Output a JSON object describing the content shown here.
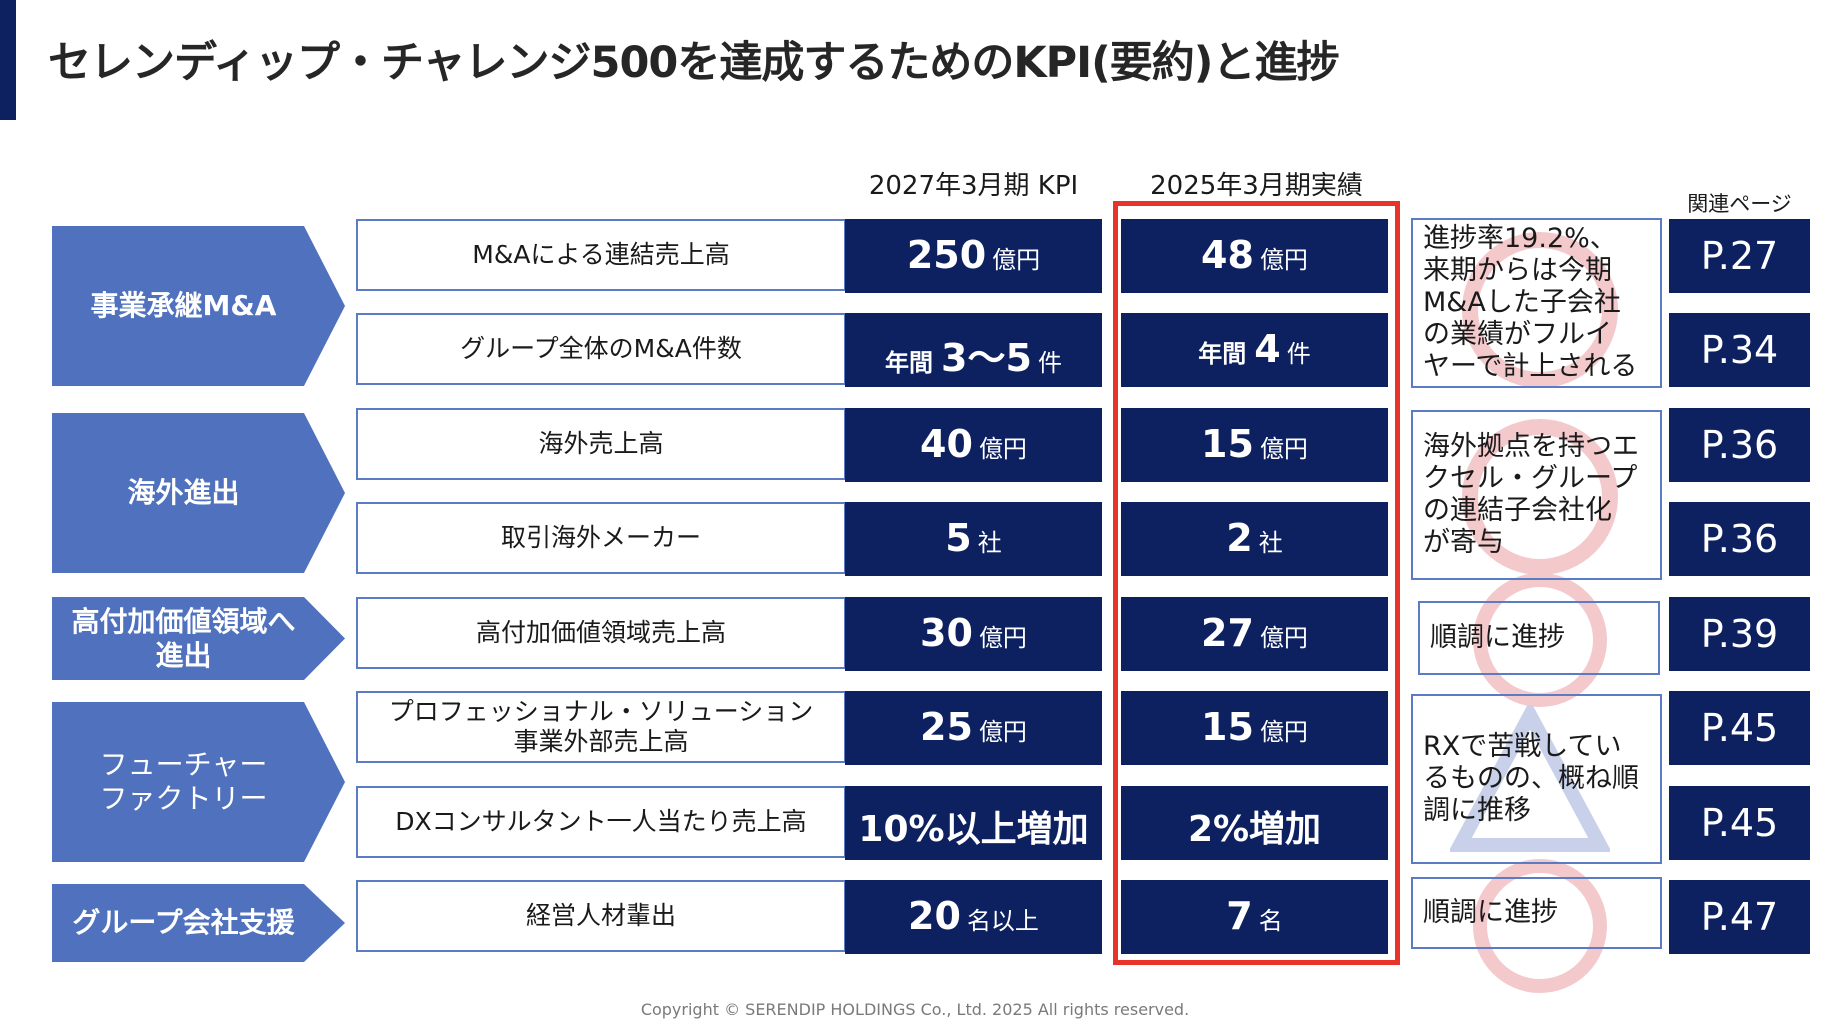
{
  "title": "セレンディップ・チャレンジ500を達成するためのKPI(要約)と進捗",
  "headers": {
    "kpi": "2027年3月期  KPI",
    "actual": "2025年3月期実績",
    "pages": "関連ページ"
  },
  "categories": [
    {
      "label": "事業承継M&A"
    },
    {
      "label": "海外進出"
    },
    {
      "label": "高付加価値領域へ\n進出"
    },
    {
      "label": "フューチャー\nファクトリー"
    },
    {
      "label": "グループ会社支援"
    }
  ],
  "rows": [
    {
      "name": "M&Aによる連結売上高",
      "kpi": {
        "prefix": "",
        "value": "250",
        "unit": "億円"
      },
      "actual": {
        "prefix": "",
        "value": "48",
        "unit": "億円"
      },
      "page": "P.27"
    },
    {
      "name": "グループ全体のM&A件数",
      "kpi": {
        "prefix": "年間",
        "value": "3〜5",
        "unit": "件"
      },
      "actual": {
        "prefix": "年間",
        "value": "4",
        "unit": "件"
      },
      "page": "P.34"
    },
    {
      "name": "海外売上高",
      "kpi": {
        "prefix": "",
        "value": "40",
        "unit": "億円"
      },
      "actual": {
        "prefix": "",
        "value": "15",
        "unit": "億円"
      },
      "page": "P.36"
    },
    {
      "name": "取引海外メーカー",
      "kpi": {
        "prefix": "",
        "value": "5",
        "unit": "社"
      },
      "actual": {
        "prefix": "",
        "value": "2",
        "unit": "社"
      },
      "page": "P.36"
    },
    {
      "name": "高付加価値領域売上高",
      "kpi": {
        "prefix": "",
        "value": "30",
        "unit": "億円"
      },
      "actual": {
        "prefix": "",
        "value": "27",
        "unit": "億円"
      },
      "page": "P.39"
    },
    {
      "name": "プロフェッショナル・ソリューション\n事業外部売上高",
      "kpi": {
        "prefix": "",
        "value": "25",
        "unit": "億円"
      },
      "actual": {
        "prefix": "",
        "value": "15",
        "unit": "億円"
      },
      "page": "P.45"
    },
    {
      "name": "DXコンサルタント一人当たり売上高",
      "kpi": {
        "prefix": "",
        "value": "10%以上増加",
        "unit": ""
      },
      "actual": {
        "prefix": "",
        "value": "2%増加",
        "unit": ""
      },
      "page": "P.45"
    },
    {
      "name": "経営人材輩出",
      "kpi": {
        "prefix": "",
        "value": "20",
        "unit": "名以上"
      },
      "actual": {
        "prefix": "",
        "value": "7",
        "unit": "名"
      },
      "page": "P.47"
    }
  ],
  "comments": [
    {
      "text": "進捗率19.2%、\n来期からは今期\nM&Aした子会社\nの業績がフルイ\nヤーで計上される",
      "status": "circle"
    },
    {
      "text": "海外拠点を持つエ\nクセル・グループ\nの連結子会社化\nが寄与",
      "status": "circle"
    },
    {
      "text": "順調に進捗",
      "status": "circle"
    },
    {
      "text": "RXで苦戦してい\nるものの、概ね順\n調に推移",
      "status": "triangle"
    },
    {
      "text": "順調に進捗",
      "status": "circle"
    }
  ],
  "colors": {
    "navy": "#0d2161",
    "category_blue": "#4f71be",
    "border_blue": "#5b7bc4",
    "highlight_red": "#e8332a",
    "circle_mark": "#f4c9cc",
    "triangle_mark": "#c9d1ea"
  },
  "footer": "Copyright © SERENDIP HOLDINGS Co., Ltd.  2025 All rights reserved."
}
